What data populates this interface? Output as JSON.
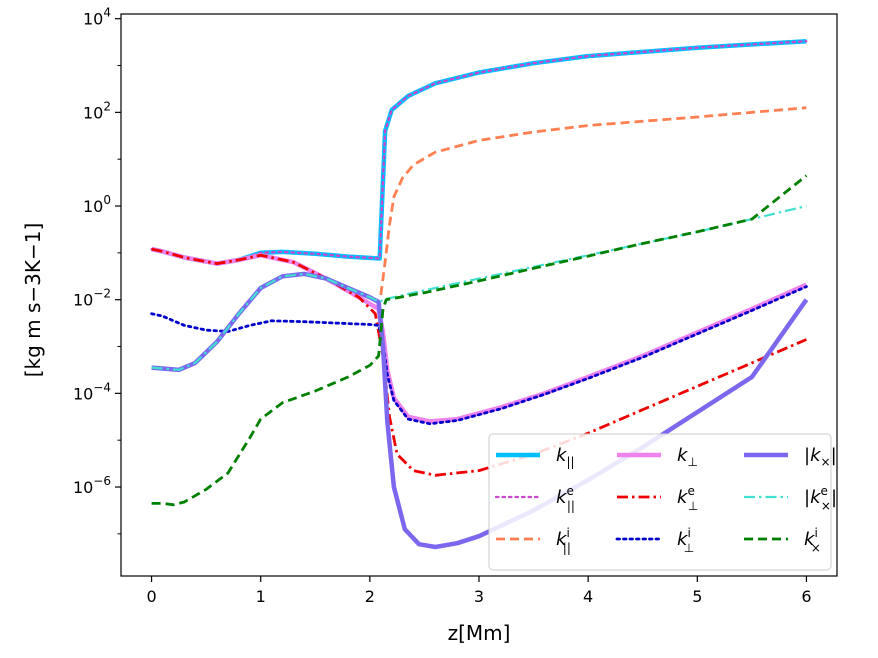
{
  "chart_data": {
    "type": "line",
    "xlabel": "z[Mm]",
    "ylabel": "[kg m s−3K−1]",
    "xlim": [
      -0.28,
      6.28
    ],
    "ylim_log10": [
      -7.9,
      4.1
    ],
    "y_scale": "log",
    "grid": false,
    "legend_placement": "lower-right",
    "legend_columns": 3,
    "x_ticks": [
      0,
      1,
      2,
      3,
      4,
      5,
      6
    ],
    "x_tick_labels": [
      "0",
      "1",
      "2",
      "3",
      "4",
      "5",
      "6"
    ],
    "y_ticks_log10": [
      -6,
      -4,
      -2,
      0,
      2,
      4
    ],
    "y_tick_labels": [
      {
        "base": "10",
        "exp": "−6"
      },
      {
        "base": "10",
        "exp": "−4"
      },
      {
        "base": "10",
        "exp": "−2"
      },
      {
        "base": "10",
        "exp": "0"
      },
      {
        "base": "10",
        "exp": "2"
      },
      {
        "base": "10",
        "exp": "4"
      }
    ],
    "series": [
      {
        "name": "k||",
        "legend": {
          "main": "k",
          "sub": "||",
          "sup": ""
        },
        "color": "#00bfff",
        "dash": "solid",
        "width": 4.5,
        "points": [
          [
            0,
            -0.92
          ],
          [
            0.1,
            -0.97
          ],
          [
            0.3,
            -1.1
          ],
          [
            0.6,
            -1.23
          ],
          [
            0.8,
            -1.15
          ],
          [
            1.0,
            -1.0
          ],
          [
            1.2,
            -0.98
          ],
          [
            1.5,
            -1.02
          ],
          [
            1.8,
            -1.08
          ],
          [
            2.09,
            -1.12
          ],
          [
            2.11,
            0.0
          ],
          [
            2.14,
            1.6
          ],
          [
            2.2,
            2.05
          ],
          [
            2.35,
            2.35
          ],
          [
            2.6,
            2.62
          ],
          [
            3.0,
            2.85
          ],
          [
            3.5,
            3.05
          ],
          [
            4.0,
            3.2
          ],
          [
            5.0,
            3.38
          ],
          [
            6.0,
            3.52
          ]
        ]
      },
      {
        "name": "k||e",
        "legend": {
          "main": "k",
          "sub": "||",
          "sup": "e"
        },
        "color": "#cc44cc",
        "dash": "dot",
        "width": 2.2,
        "points": [
          [
            0,
            -0.92
          ],
          [
            0.1,
            -0.97
          ],
          [
            0.3,
            -1.1
          ],
          [
            0.6,
            -1.23
          ],
          [
            0.8,
            -1.15
          ],
          [
            1.0,
            -1.0
          ],
          [
            1.2,
            -0.98
          ],
          [
            1.5,
            -1.02
          ],
          [
            1.8,
            -1.08
          ],
          [
            2.09,
            -1.12
          ],
          [
            2.11,
            0.0
          ],
          [
            2.14,
            1.6
          ],
          [
            2.2,
            2.05
          ],
          [
            2.35,
            2.35
          ],
          [
            2.6,
            2.62
          ],
          [
            3.0,
            2.85
          ],
          [
            3.5,
            3.05
          ],
          [
            4.0,
            3.2
          ],
          [
            5.0,
            3.38
          ],
          [
            6.0,
            3.52
          ]
        ]
      },
      {
        "name": "k||i",
        "legend": {
          "main": "k",
          "sub": "||",
          "sup": "i"
        },
        "color": "#ff7f50",
        "dash": "dash",
        "width": 2.8,
        "points": [
          [
            2.1,
            -1.9
          ],
          [
            2.14,
            -1.2
          ],
          [
            2.18,
            -0.4
          ],
          [
            2.22,
            0.2
          ],
          [
            2.3,
            0.6
          ],
          [
            2.4,
            0.88
          ],
          [
            2.6,
            1.15
          ],
          [
            3.0,
            1.4
          ],
          [
            3.5,
            1.58
          ],
          [
            4.0,
            1.72
          ],
          [
            5.0,
            1.9
          ],
          [
            6.0,
            2.1
          ]
        ]
      },
      {
        "name": "k⊥",
        "legend": {
          "main": "k",
          "sub": "⊥",
          "sup": ""
        },
        "color": "#ee82ee",
        "dash": "solid",
        "width": 4.5,
        "points": [
          [
            0,
            -0.92
          ],
          [
            0.1,
            -0.97
          ],
          [
            0.3,
            -1.1
          ],
          [
            0.6,
            -1.23
          ],
          [
            0.8,
            -1.15
          ],
          [
            1.0,
            -1.05
          ],
          [
            1.3,
            -1.2
          ],
          [
            1.6,
            -1.55
          ],
          [
            1.9,
            -1.95
          ],
          [
            2.08,
            -2.2
          ],
          [
            2.12,
            -2.7
          ],
          [
            2.16,
            -3.5
          ],
          [
            2.22,
            -4.1
          ],
          [
            2.35,
            -4.5
          ],
          [
            2.55,
            -4.6
          ],
          [
            2.8,
            -4.55
          ],
          [
            3.2,
            -4.3
          ],
          [
            3.6,
            -4.0
          ],
          [
            4.0,
            -3.65
          ],
          [
            4.5,
            -3.2
          ],
          [
            5.0,
            -2.7
          ],
          [
            5.5,
            -2.2
          ],
          [
            6.0,
            -1.68
          ]
        ]
      },
      {
        "name": "k⊥e",
        "legend": {
          "main": "k",
          "sub": "⊥",
          "sup": "e"
        },
        "color": "#ee0000",
        "dash": "dashdot",
        "width": 2.8,
        "points": [
          [
            0,
            -0.92
          ],
          [
            0.1,
            -0.97
          ],
          [
            0.3,
            -1.1
          ],
          [
            0.6,
            -1.23
          ],
          [
            0.8,
            -1.15
          ],
          [
            1.0,
            -1.05
          ],
          [
            1.3,
            -1.2
          ],
          [
            1.6,
            -1.55
          ],
          [
            1.9,
            -1.95
          ],
          [
            2.05,
            -2.3
          ],
          [
            2.12,
            -3.2
          ],
          [
            2.18,
            -4.5
          ],
          [
            2.25,
            -5.3
          ],
          [
            2.4,
            -5.65
          ],
          [
            2.6,
            -5.75
          ],
          [
            3.0,
            -5.65
          ],
          [
            3.5,
            -5.3
          ],
          [
            4.0,
            -4.85
          ],
          [
            4.5,
            -4.35
          ],
          [
            5.0,
            -3.85
          ],
          [
            5.5,
            -3.35
          ],
          [
            6.0,
            -2.85
          ]
        ]
      },
      {
        "name": "k⊥i",
        "legend": {
          "main": "k",
          "sub": "⊥",
          "sup": "i"
        },
        "color": "#0000cc",
        "dash": "dot",
        "width": 2.8,
        "points": [
          [
            0,
            -2.3
          ],
          [
            0.1,
            -2.35
          ],
          [
            0.3,
            -2.55
          ],
          [
            0.5,
            -2.65
          ],
          [
            0.7,
            -2.68
          ],
          [
            0.9,
            -2.55
          ],
          [
            1.1,
            -2.45
          ],
          [
            1.4,
            -2.47
          ],
          [
            1.7,
            -2.5
          ],
          [
            2.0,
            -2.53
          ],
          [
            2.08,
            -2.55
          ],
          [
            2.12,
            -2.9
          ],
          [
            2.16,
            -3.6
          ],
          [
            2.22,
            -4.15
          ],
          [
            2.35,
            -4.55
          ],
          [
            2.55,
            -4.65
          ],
          [
            2.8,
            -4.58
          ],
          [
            3.2,
            -4.33
          ],
          [
            3.6,
            -4.02
          ],
          [
            4.0,
            -3.68
          ],
          [
            4.5,
            -3.23
          ],
          [
            5.0,
            -2.73
          ],
          [
            5.5,
            -2.23
          ],
          [
            6.0,
            -1.72
          ]
        ]
      },
      {
        "name": "|k×|",
        "legend": {
          "main": "|k",
          "sub": "×",
          "sup": "",
          "close": "|"
        },
        "color": "#7b68ee",
        "dash": "solid",
        "width": 4.5,
        "points": [
          [
            0,
            -3.45
          ],
          [
            0.1,
            -3.47
          ],
          [
            0.25,
            -3.5
          ],
          [
            0.4,
            -3.35
          ],
          [
            0.6,
            -2.9
          ],
          [
            0.8,
            -2.3
          ],
          [
            1.0,
            -1.75
          ],
          [
            1.2,
            -1.5
          ],
          [
            1.4,
            -1.45
          ],
          [
            1.6,
            -1.55
          ],
          [
            1.8,
            -1.75
          ],
          [
            2.0,
            -1.95
          ],
          [
            2.08,
            -2.05
          ],
          [
            2.12,
            -3.0
          ],
          [
            2.16,
            -4.6
          ],
          [
            2.22,
            -6.0
          ],
          [
            2.32,
            -6.9
          ],
          [
            2.45,
            -7.22
          ],
          [
            2.6,
            -7.28
          ],
          [
            2.8,
            -7.2
          ],
          [
            3.0,
            -7.05
          ],
          [
            3.5,
            -6.5
          ],
          [
            4.0,
            -5.85
          ],
          [
            4.5,
            -5.15
          ],
          [
            5.0,
            -4.4
          ],
          [
            5.5,
            -3.65
          ],
          [
            6.0,
            -2.0
          ]
        ]
      },
      {
        "name": "|k×e|",
        "legend": {
          "main": "|k",
          "sub": "×",
          "sup": "e",
          "close": "|"
        },
        "color": "#40e0d0",
        "dash": "dashdot",
        "width": 2.2,
        "points": [
          [
            0,
            -3.45
          ],
          [
            0.1,
            -3.47
          ],
          [
            0.25,
            -3.5
          ],
          [
            0.4,
            -3.35
          ],
          [
            0.6,
            -2.9
          ],
          [
            0.8,
            -2.3
          ],
          [
            1.0,
            -1.75
          ],
          [
            1.2,
            -1.5
          ],
          [
            1.4,
            -1.45
          ],
          [
            1.6,
            -1.55
          ],
          [
            1.8,
            -1.75
          ],
          [
            2.0,
            -1.95
          ],
          [
            2.09,
            -2.05
          ],
          [
            2.12,
            -2.0
          ],
          [
            2.5,
            -1.8
          ],
          [
            3.0,
            -1.55
          ],
          [
            3.5,
            -1.3
          ],
          [
            4.0,
            -1.05
          ],
          [
            4.5,
            -0.8
          ],
          [
            5.0,
            -0.55
          ],
          [
            5.5,
            -0.28
          ],
          [
            6.0,
            0.0
          ]
        ]
      },
      {
        "name": "k×i",
        "legend": {
          "main": "k",
          "sub": "×",
          "sup": "i"
        },
        "color": "#008000",
        "dash": "dash",
        "width": 2.8,
        "points": [
          [
            0,
            -6.35
          ],
          [
            0.1,
            -6.35
          ],
          [
            0.2,
            -6.38
          ],
          [
            0.3,
            -6.32
          ],
          [
            0.5,
            -6.05
          ],
          [
            0.7,
            -5.7
          ],
          [
            0.9,
            -4.95
          ],
          [
            1.0,
            -4.55
          ],
          [
            1.2,
            -4.2
          ],
          [
            1.5,
            -3.95
          ],
          [
            1.8,
            -3.65
          ],
          [
            2.0,
            -3.4
          ],
          [
            2.08,
            -3.2
          ],
          [
            2.12,
            -2.2
          ],
          [
            2.15,
            -2.0
          ],
          [
            2.5,
            -1.85
          ],
          [
            3.0,
            -1.6
          ],
          [
            3.5,
            -1.33
          ],
          [
            4.0,
            -1.07
          ],
          [
            4.5,
            -0.8
          ],
          [
            5.0,
            -0.55
          ],
          [
            5.5,
            -0.28
          ],
          [
            6.0,
            0.65
          ]
        ]
      }
    ]
  }
}
